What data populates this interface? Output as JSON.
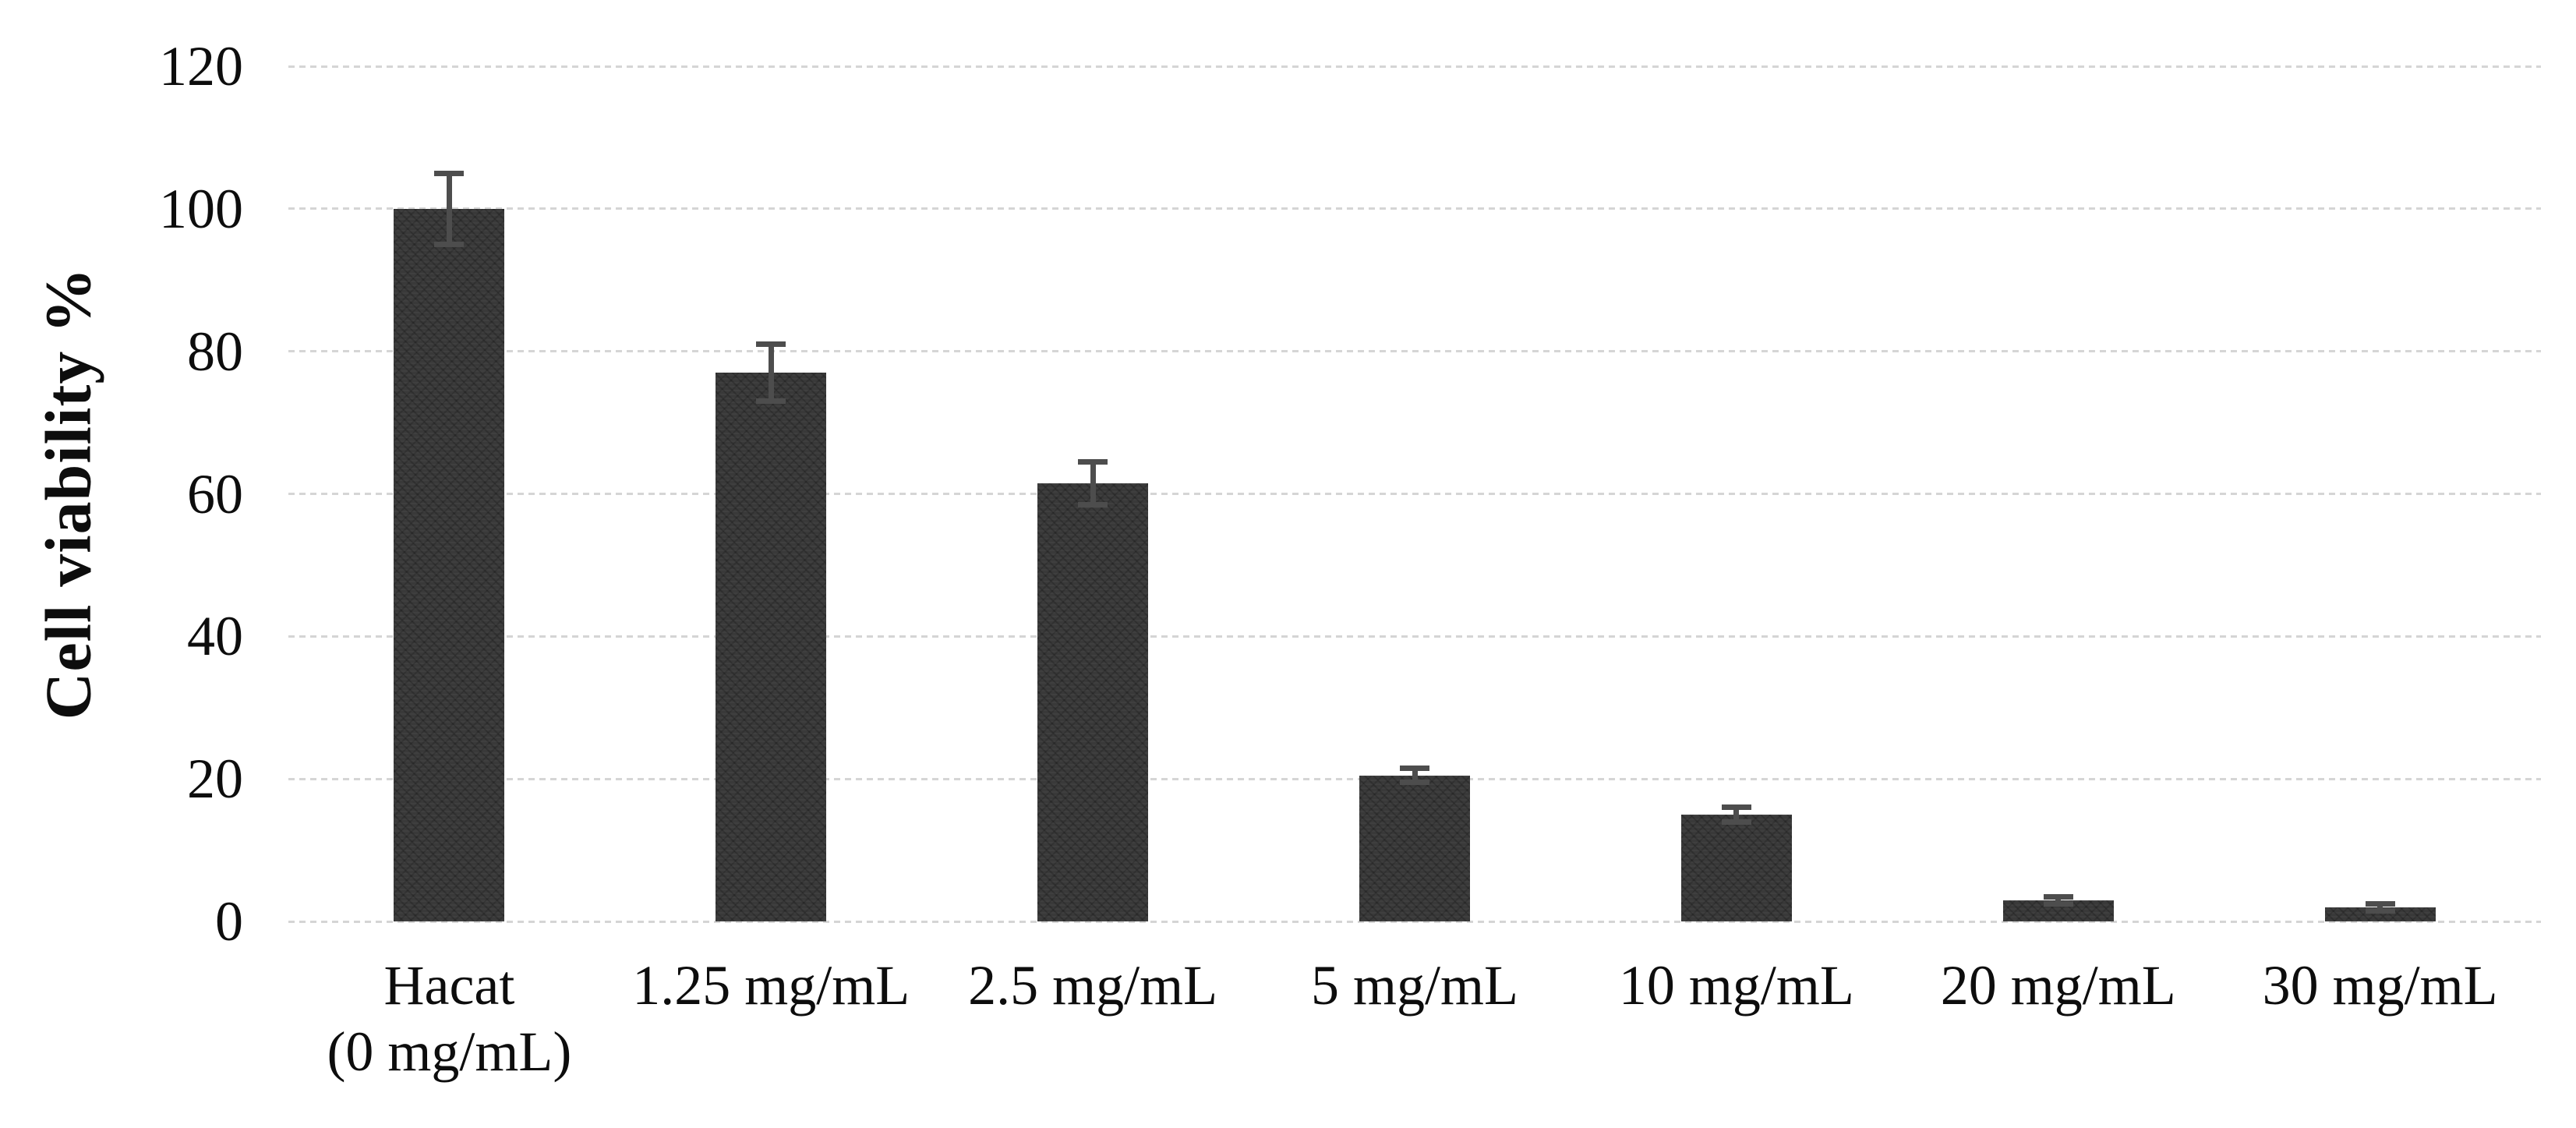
{
  "chart_data": {
    "type": "bar",
    "title": "",
    "xlabel": "",
    "ylabel": "Cell viability %",
    "ylim": [
      0,
      120
    ],
    "yticks": [
      0,
      20,
      40,
      60,
      80,
      100,
      120
    ],
    "grid": "horizontal-dotted",
    "legend": "none",
    "background_color": "#ffffff",
    "categories": [
      "Hacat\n(0 mg/mL)",
      "1.25 mg/mL",
      "2.5 mg/mL",
      "5 mg/mL",
      "10 mg/mL",
      "20 mg/mL",
      "30 mg/mL"
    ],
    "series": [
      {
        "name": "Cell viability %",
        "values": [
          100,
          77,
          61.5,
          20.5,
          15,
          3,
          2
        ],
        "errors": [
          5,
          4,
          3,
          1,
          1,
          0.5,
          0.5
        ]
      }
    ],
    "bar_color": "#393939",
    "error_bar_color": "#4d4d4d",
    "gridline_color": "#d5d5d5",
    "text_color": "#0d0d0d"
  }
}
